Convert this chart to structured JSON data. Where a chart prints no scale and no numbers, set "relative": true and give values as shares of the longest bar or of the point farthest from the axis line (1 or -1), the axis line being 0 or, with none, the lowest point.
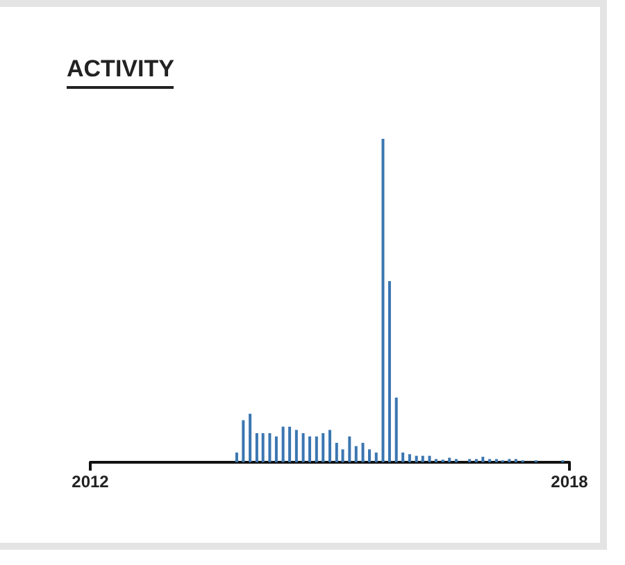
{
  "chart_data": {
    "type": "bar",
    "title": "ACTIVITY",
    "relative": true,
    "color": "#3b76b1",
    "x": [
      "2013-11",
      "2013-12",
      "2014-01",
      "2014-02",
      "2014-03",
      "2014-04",
      "2014-05",
      "2014-06",
      "2014-07",
      "2014-08",
      "2014-09",
      "2014-10",
      "2014-11",
      "2014-12",
      "2015-01",
      "2015-02",
      "2015-03",
      "2015-04",
      "2015-05",
      "2015-06",
      "2015-07",
      "2015-08",
      "2015-09",
      "2015-10",
      "2015-11",
      "2015-12",
      "2016-01",
      "2016-02",
      "2016-03",
      "2016-04",
      "2016-05",
      "2016-06",
      "2016-07",
      "2016-08",
      "2016-10",
      "2016-11",
      "2016-12",
      "2017-01",
      "2017-02",
      "2017-03",
      "2017-04",
      "2017-05",
      "2017-06",
      "2017-08",
      "2017-12"
    ],
    "values": [
      0.03,
      0.13,
      0.15,
      0.09,
      0.09,
      0.09,
      0.08,
      0.11,
      0.11,
      0.1,
      0.09,
      0.08,
      0.08,
      0.09,
      0.1,
      0.06,
      0.04,
      0.08,
      0.05,
      0.06,
      0.04,
      0.03,
      1,
      0.56,
      0.2,
      0.03,
      0.025,
      0.02,
      0.02,
      0.02,
      0.01,
      0.008,
      0.014,
      0.01,
      0.01,
      0.01,
      0.017,
      0.01,
      0.01,
      0.006,
      0.01,
      0.01,
      0.006,
      0.006,
      0.006
    ],
    "xlim": [
      "2012",
      "2018"
    ],
    "xticks": [
      "2012",
      "2018"
    ]
  }
}
